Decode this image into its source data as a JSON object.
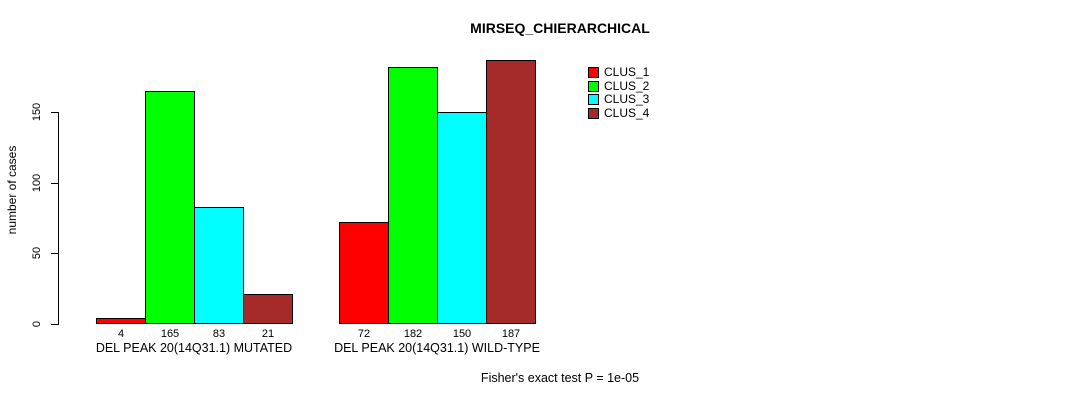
{
  "title": "MIRSEQ_CHIERARCHICAL",
  "y_axis": {
    "label": "number of cases",
    "ticks": [
      0,
      50,
      100,
      150
    ]
  },
  "legend": {
    "items": [
      {
        "label": "CLUS_1",
        "color": "#FF0000"
      },
      {
        "label": "CLUS_2",
        "color": "#00FF00"
      },
      {
        "label": "CLUS_3",
        "color": "#00FFFF"
      },
      {
        "label": "CLUS_4",
        "color": "#A52A2A"
      }
    ]
  },
  "footnote": "Fisher's exact test P = 1e-05",
  "chart_data": {
    "type": "bar",
    "title": "MIRSEQ_CHIERARCHICAL",
    "ylabel": "number of cases",
    "ylim": [
      0,
      150
    ],
    "y_ticks": [
      0,
      50,
      100,
      150
    ],
    "grid": false,
    "legend_position": "top-right",
    "categories": [
      "DEL PEAK 20(14Q31.1) MUTATED",
      "DEL PEAK 20(14Q31.1) WILD-TYPE"
    ],
    "series": [
      {
        "name": "CLUS_1",
        "color": "#FF0000",
        "values": [
          4,
          72
        ]
      },
      {
        "name": "CLUS_2",
        "color": "#00FF00",
        "values": [
          165,
          182
        ]
      },
      {
        "name": "CLUS_3",
        "color": "#00FFFF",
        "values": [
          83,
          150
        ]
      },
      {
        "name": "CLUS_4",
        "color": "#A52A2A",
        "values": [
          21,
          187
        ]
      }
    ],
    "bar_value_labels": [
      [
        4,
        165,
        83,
        21
      ],
      [
        72,
        182,
        150,
        187
      ]
    ],
    "annotation": "Fisher's exact test P = 1e-05"
  }
}
